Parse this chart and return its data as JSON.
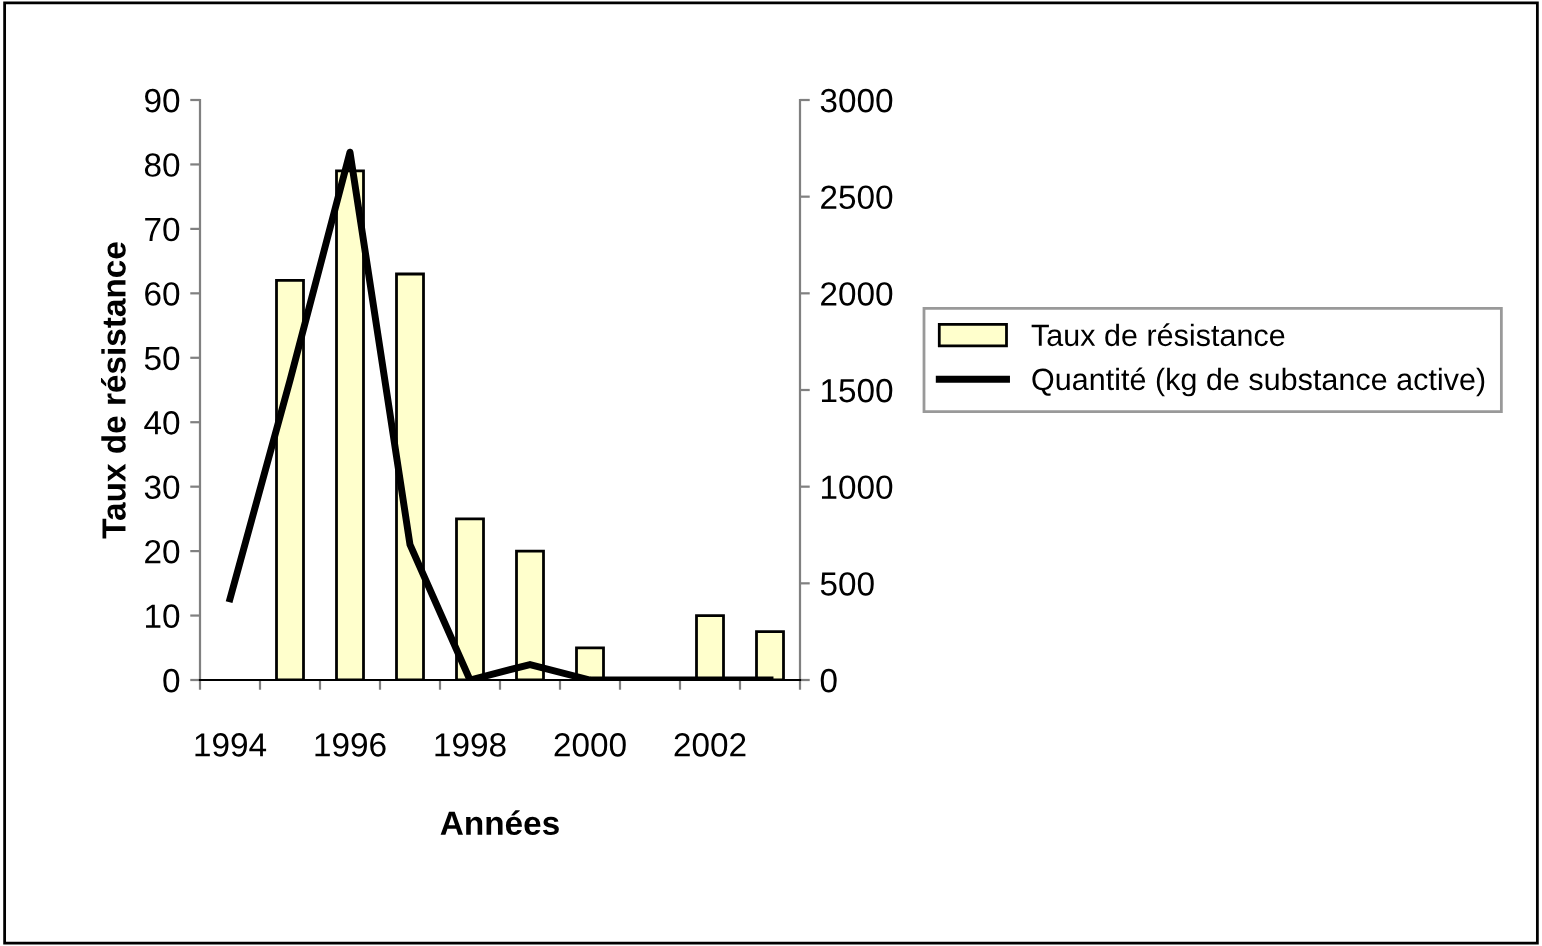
{
  "chart_data": {
    "type": "bar",
    "xlabel": "Années",
    "ylabel": "Taux de résistance",
    "categories": [
      "1994",
      null,
      "1996",
      null,
      "1998",
      null,
      "2000",
      null,
      "2002",
      null
    ],
    "series": [
      {
        "name": "Taux de résistance",
        "color": "#ffffcc",
        "values": [
          null,
          62,
          79,
          63,
          25,
          20,
          5,
          null,
          10,
          7.5
        ]
      },
      {
        "name": "Quantité (kg de substance active)",
        "type": "line",
        "axis": "y2",
        "color": "#000000",
        "values": [
          420,
          1550,
          2730,
          700,
          0,
          80,
          0,
          0,
          0,
          0
        ]
      }
    ],
    "ylim": [
      0,
      90
    ],
    "yticks": [
      0,
      10,
      20,
      30,
      40,
      50,
      60,
      70,
      80,
      90
    ],
    "y2lim": [
      0,
      3000
    ],
    "y2ticks": [
      0,
      500,
      1000,
      1500,
      2000,
      2500,
      3000
    ],
    "legend": "right",
    "grid": false
  }
}
